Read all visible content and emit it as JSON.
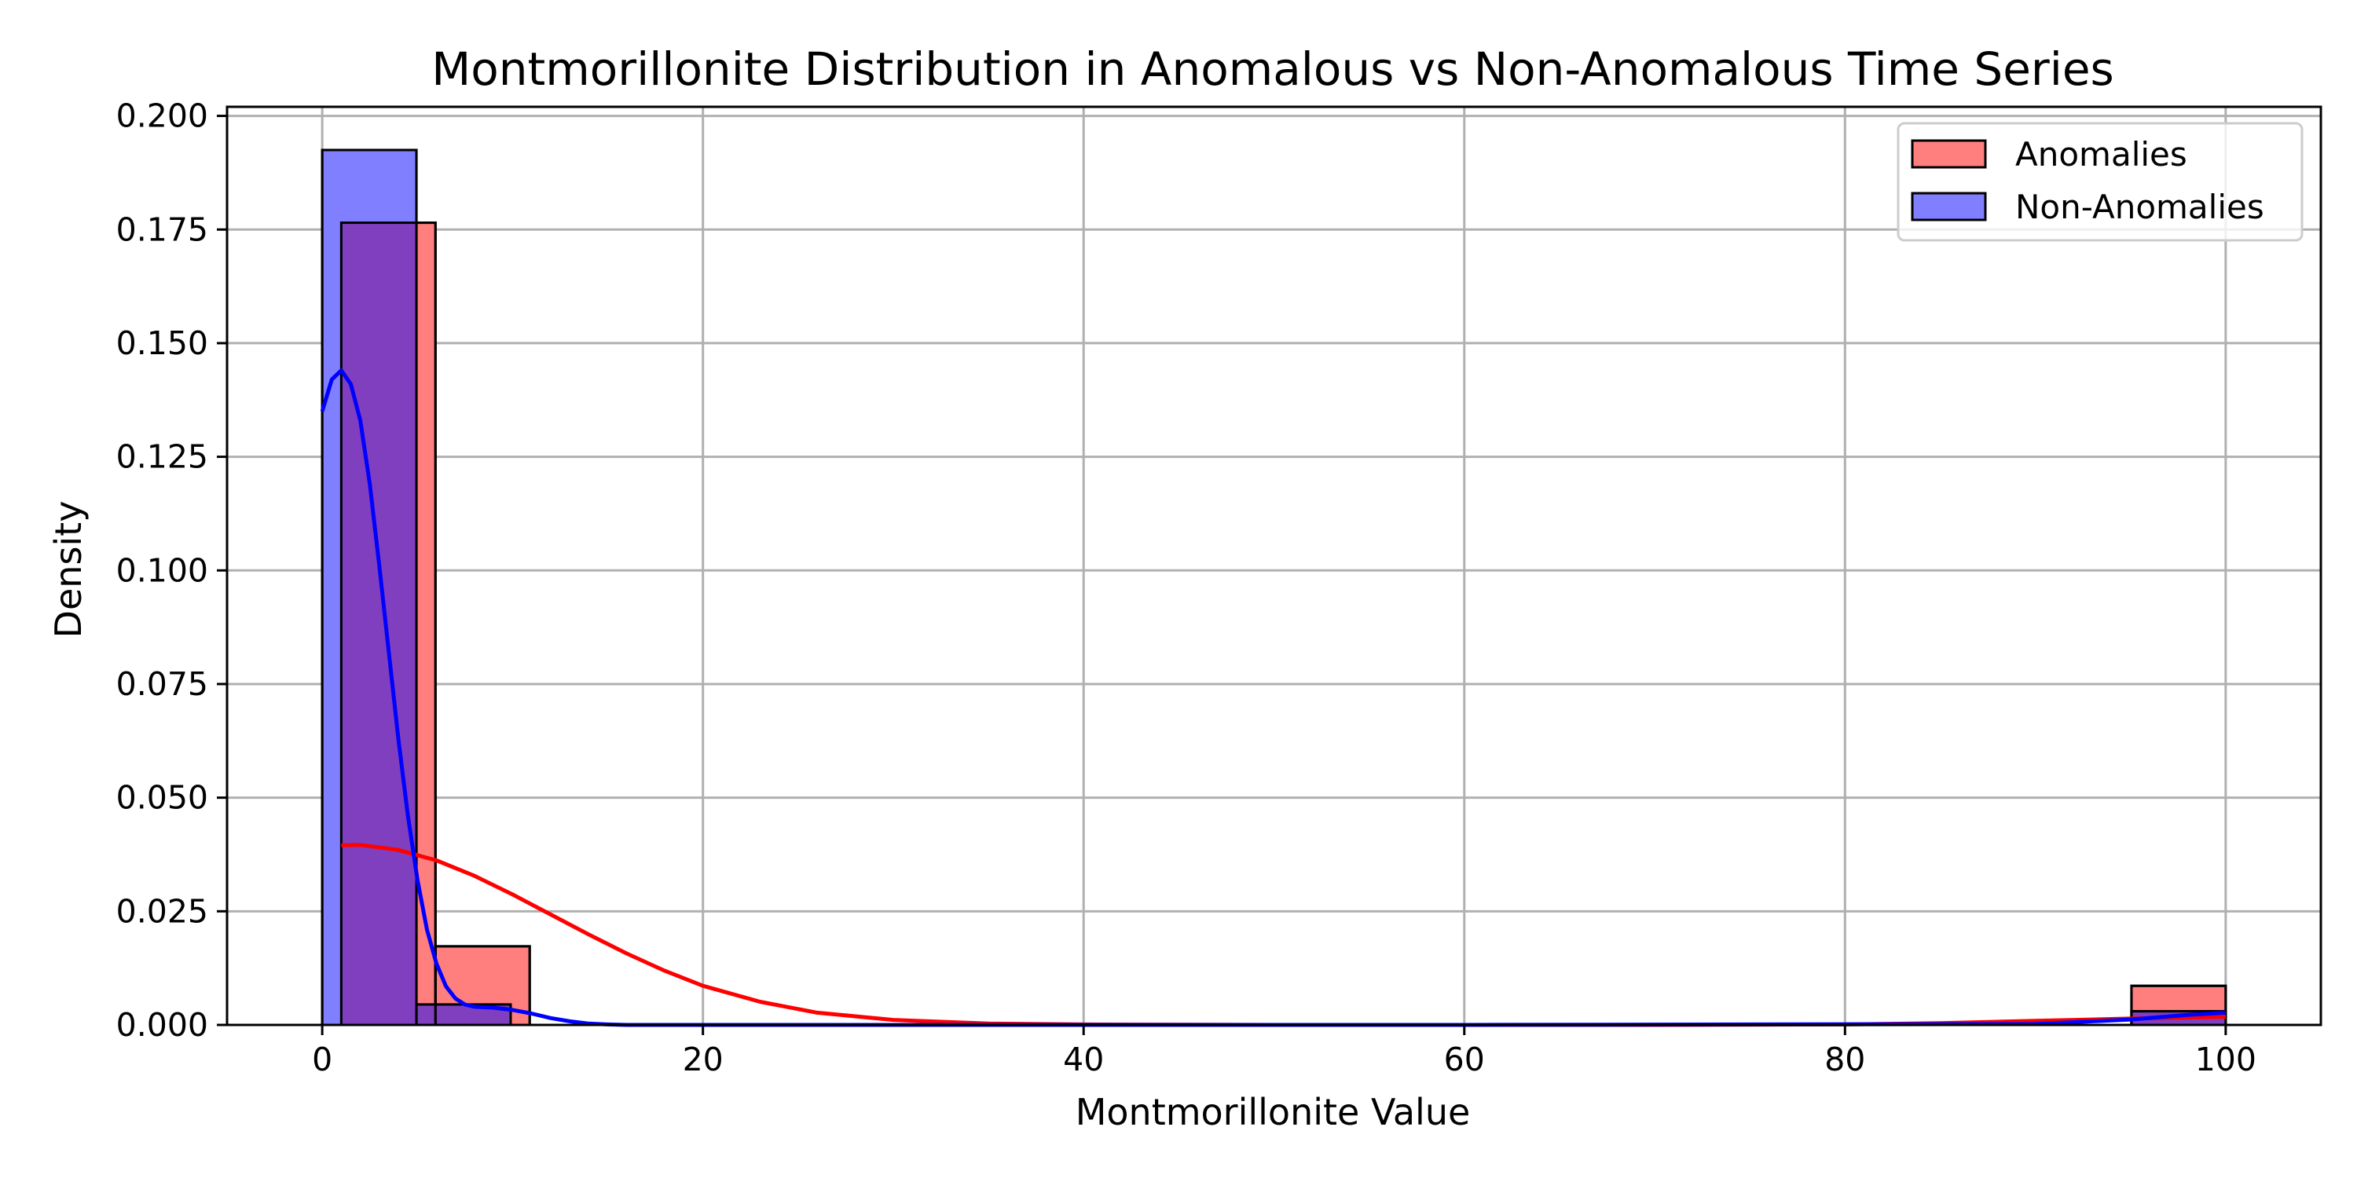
{
  "colors": {
    "anomalies_fill": "#ff7f7f",
    "anomalies_line": "#ff0000",
    "non_anomalies_fill": "#7f7fff",
    "non_anomalies_line": "#0000ff",
    "overlap_fill": "#7f3fbf",
    "grid": "#b0b0b0",
    "edge": "#000000"
  },
  "chart_data": {
    "type": "bar",
    "subtype": "histogram with kde",
    "title": "Montmorillonite Distribution in Anomalous vs Non-Anomalous Time Series",
    "xlabel": "Montmorillonite Value",
    "ylabel": "Density",
    "xlim": [
      -5,
      105
    ],
    "ylim": [
      0,
      0.202
    ],
    "xticks": [
      0,
      20,
      40,
      60,
      80,
      100
    ],
    "xtick_labels": [
      "0",
      "20",
      "40",
      "60",
      "80",
      "100"
    ],
    "yticks": [
      0,
      0.025,
      0.05,
      0.075,
      0.1,
      0.125,
      0.15,
      0.175,
      0.2
    ],
    "ytick_labels": [
      "0.000",
      "0.025",
      "0.050",
      "0.075",
      "0.100",
      "0.125",
      "0.150",
      "0.175",
      "0.200"
    ],
    "grid": true,
    "legend_position": "top-right",
    "series": [
      {
        "name": "Anomalies",
        "color": "#ff7f7f",
        "kde_color": "#ff0000",
        "bins": [
          {
            "x0": 1.0,
            "x1": 5.95,
            "value": 0.1765
          },
          {
            "x0": 5.95,
            "x1": 10.9,
            "value": 0.0173
          },
          {
            "x0": 95.05,
            "x1": 100.0,
            "value": 0.0086
          }
        ],
        "kde": {
          "x": [
            1,
            2,
            4,
            6,
            8,
            10,
            12,
            14,
            16,
            18,
            20,
            23,
            26,
            30,
            35,
            40,
            50,
            60,
            70,
            80,
            85,
            90,
            95,
            100
          ],
          "y": [
            0.0395,
            0.0396,
            0.0385,
            0.0362,
            0.0328,
            0.0287,
            0.0243,
            0.0199,
            0.0157,
            0.0119,
            0.0086,
            0.0051,
            0.0027,
            0.0011,
            0.0003,
            0.0001,
            0.0,
            0.0,
            0.0,
            0.0001,
            0.0004,
            0.0009,
            0.0014,
            0.0018
          ]
        }
      },
      {
        "name": "Non-Anomalies",
        "color": "#7f7fff",
        "kde_color": "#0000ff",
        "bins": [
          {
            "x0": 0.0,
            "x1": 4.95,
            "value": 0.1925
          },
          {
            "x0": 4.95,
            "x1": 9.9,
            "value": 0.0045
          },
          {
            "x0": 95.05,
            "x1": 100.0,
            "value": 0.003
          }
        ],
        "kde": {
          "x": [
            0,
            0.5,
            1,
            1.5,
            2,
            2.5,
            3,
            3.5,
            4,
            4.5,
            5,
            5.5,
            6,
            6.5,
            7,
            7.5,
            8,
            9,
            10,
            11,
            12,
            13,
            14,
            15,
            16,
            18,
            20,
            30,
            60,
            90,
            95,
            98,
            100
          ],
          "y": [
            0.135,
            0.142,
            0.144,
            0.141,
            0.133,
            0.119,
            0.101,
            0.082,
            0.063,
            0.046,
            0.032,
            0.021,
            0.0135,
            0.0085,
            0.0058,
            0.0045,
            0.004,
            0.0038,
            0.0033,
            0.0025,
            0.0015,
            0.0008,
            0.0003,
            0.0001,
            0.0,
            0.0,
            0.0,
            0.0,
            0.0,
            0.0002,
            0.0012,
            0.0022,
            0.0027
          ]
        }
      }
    ],
    "overlap_color": "#7f3fbf"
  }
}
